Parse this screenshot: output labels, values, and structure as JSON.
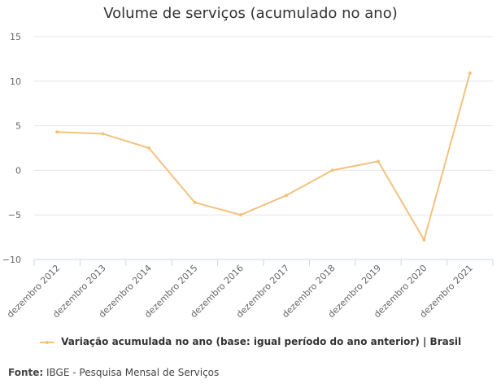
{
  "colors": {
    "series": "#F2C27E",
    "grid": "#E6E6E6",
    "axis": "#CCD6EB"
  },
  "chart_data": {
    "type": "line",
    "title": "Volume de serviços (acumulado no ano)",
    "categories": [
      "dezembro 2012",
      "dezembro 2013",
      "dezembro 2014",
      "dezembro 2015",
      "dezembro 2016",
      "dezembro 2017",
      "dezembro 2018",
      "dezembro 2019",
      "dezembro 2020",
      "dezembro 2021"
    ],
    "series": [
      {
        "name": "Variação acumulada no ano (base: igual período do ano anterior) | Brasil",
        "values": [
          4.3,
          4.1,
          2.5,
          -3.6,
          -5.0,
          -2.8,
          0.0,
          1.0,
          -7.8,
          10.9
        ]
      }
    ],
    "yticks": [
      15,
      10,
      5,
      0,
      -5,
      -10
    ],
    "ylim": [
      -10,
      15
    ],
    "grid": true,
    "legend": "bottom"
  },
  "source": {
    "label": "Fonte:",
    "text": " IBGE - Pesquisa Mensal de Serviços"
  }
}
